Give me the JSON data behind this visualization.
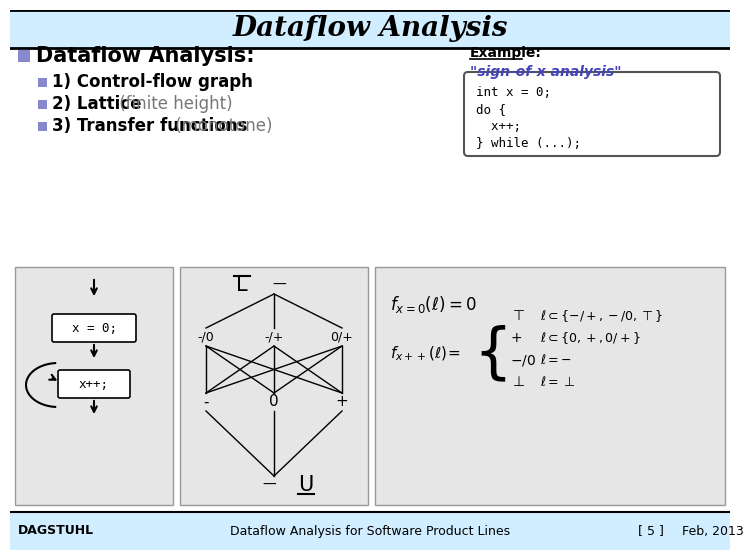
{
  "title": "Dataflow Analysis",
  "title_bg": "#d0eeff",
  "header_text": "Dataflow Analysis:",
  "bullet_color": "#8888cc",
  "sub_bullets": [
    [
      "1) Control-flow graph",
      ""
    ],
    [
      "2) Lattice",
      " (finite height)"
    ],
    [
      "3) Transfer functions",
      " (monotone)"
    ]
  ],
  "example_label": "Example:",
  "example_sub": "\"sign-of-x analysis\"",
  "code_lines": [
    "int x = 0;",
    "do {",
    "  x++;",
    "} while (...);"
  ],
  "footer_left": "DAGSTUHL",
  "footer_center": "Dataflow Analysis for Software Product Lines",
  "footer_right_1": "[ 5 ]",
  "footer_right_2": "Feb, 2013",
  "footer_bg": "#d0eeff",
  "lattice_um": [
    "-/0",
    "-/+",
    "0/+"
  ],
  "lattice_lm": [
    "-",
    "0",
    "+"
  ]
}
